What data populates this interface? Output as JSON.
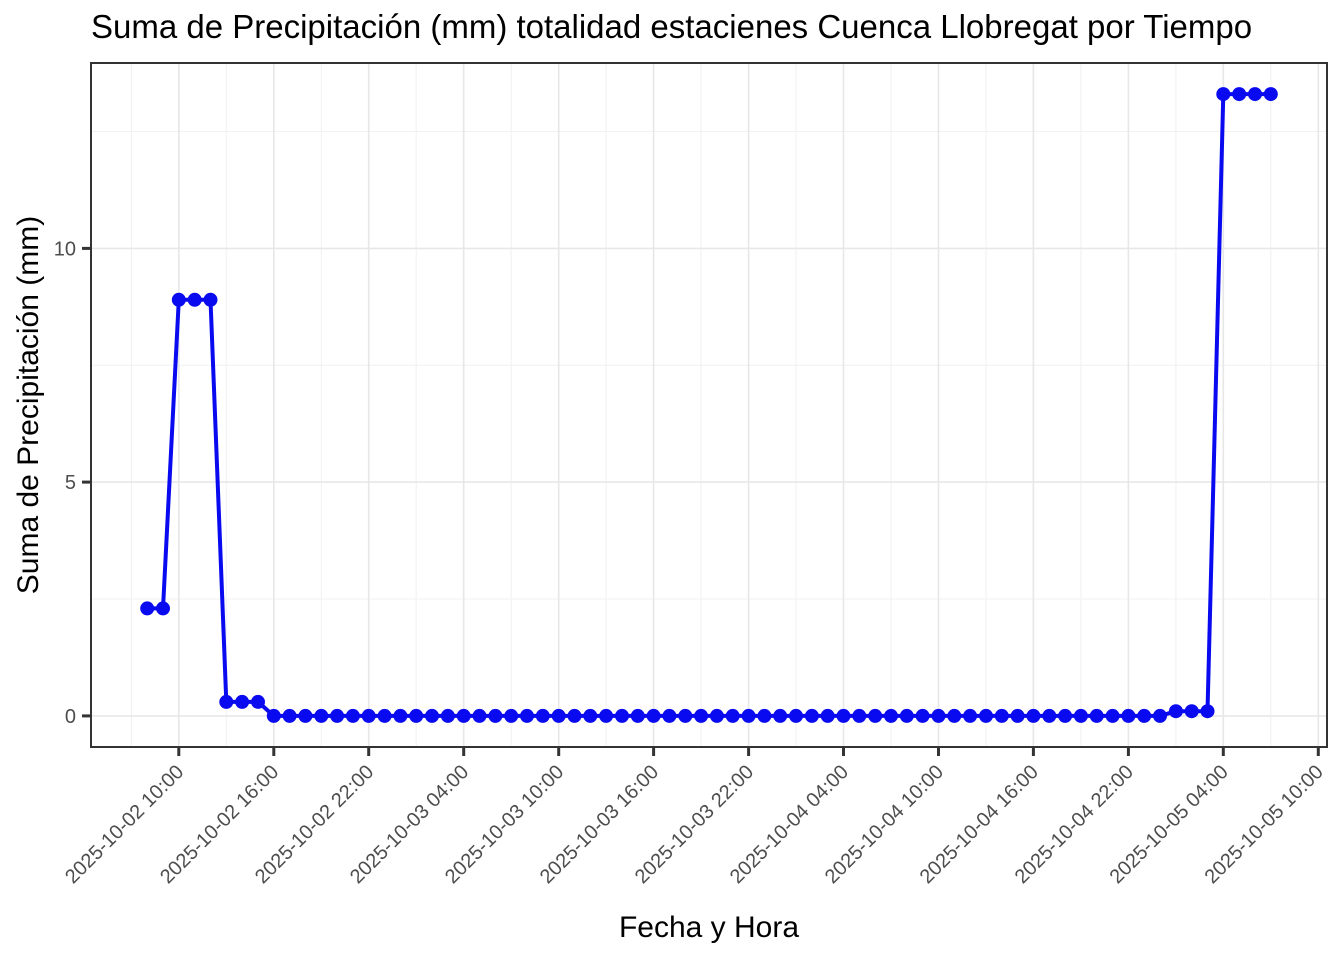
{
  "page": {
    "background": "#ffffff"
  },
  "chart_data": {
    "type": "line",
    "title": "Suma de Precipitación (mm) totalidad estacienes Cuenca Llobregat por Tiempo",
    "xlabel": "Fecha y Hora",
    "ylabel": "Suma de Precipitación (mm)",
    "legend": "none",
    "grid": "major+minor",
    "marker": "circle",
    "accent_color": "#0a0af0",
    "panel_border_color": "#333333",
    "tick_mark_color": "#333333",
    "tick_label_color": "#4d4d4d",
    "grid_major_color": "#e7e7e7",
    "grid_minor_color": "#f2f2f2",
    "y_ticks": [
      0,
      5,
      10
    ],
    "y_axis_expansion": 0.05,
    "x_axis_expansion": 0.05,
    "x_tick_labels": [
      "2025-10-02 10:00",
      "2025-10-02 16:00",
      "2025-10-02 22:00",
      "2025-10-03 04:00",
      "2025-10-03 10:00",
      "2025-10-03 16:00",
      "2025-10-03 22:00",
      "2025-10-04 04:00",
      "2025-10-04 10:00",
      "2025-10-04 16:00",
      "2025-10-04 22:00",
      "2025-10-05 04:00",
      "2025-10-05 10:00"
    ],
    "x": [
      "2025-10-02 08:00",
      "2025-10-02 09:00",
      "2025-10-02 10:00",
      "2025-10-02 11:00",
      "2025-10-02 12:00",
      "2025-10-02 13:00",
      "2025-10-02 14:00",
      "2025-10-02 15:00",
      "2025-10-02 16:00",
      "2025-10-02 17:00",
      "2025-10-02 18:00",
      "2025-10-02 19:00",
      "2025-10-02 20:00",
      "2025-10-02 21:00",
      "2025-10-02 22:00",
      "2025-10-02 23:00",
      "2025-10-03 00:00",
      "2025-10-03 01:00",
      "2025-10-03 02:00",
      "2025-10-03 03:00",
      "2025-10-03 04:00",
      "2025-10-03 05:00",
      "2025-10-03 06:00",
      "2025-10-03 07:00",
      "2025-10-03 08:00",
      "2025-10-03 09:00",
      "2025-10-03 10:00",
      "2025-10-03 11:00",
      "2025-10-03 12:00",
      "2025-10-03 13:00",
      "2025-10-03 14:00",
      "2025-10-03 15:00",
      "2025-10-03 16:00",
      "2025-10-03 17:00",
      "2025-10-03 18:00",
      "2025-10-03 19:00",
      "2025-10-03 20:00",
      "2025-10-03 21:00",
      "2025-10-03 22:00",
      "2025-10-03 23:00",
      "2025-10-04 00:00",
      "2025-10-04 01:00",
      "2025-10-04 02:00",
      "2025-10-04 03:00",
      "2025-10-04 04:00",
      "2025-10-04 05:00",
      "2025-10-04 06:00",
      "2025-10-04 07:00",
      "2025-10-04 08:00",
      "2025-10-04 09:00",
      "2025-10-04 10:00",
      "2025-10-04 11:00",
      "2025-10-04 12:00",
      "2025-10-04 13:00",
      "2025-10-04 14:00",
      "2025-10-04 15:00",
      "2025-10-04 16:00",
      "2025-10-04 17:00",
      "2025-10-04 18:00",
      "2025-10-04 19:00",
      "2025-10-04 20:00",
      "2025-10-04 21:00",
      "2025-10-04 22:00",
      "2025-10-04 23:00",
      "2025-10-05 00:00",
      "2025-10-05 01:00",
      "2025-10-05 02:00",
      "2025-10-05 03:00",
      "2025-10-05 04:00",
      "2025-10-05 05:00",
      "2025-10-05 06:00",
      "2025-10-05 07:00"
    ],
    "y": [
      2.3,
      2.3,
      8.9,
      8.9,
      8.9,
      0.3,
      0.3,
      0.3,
      0,
      0,
      0,
      0,
      0,
      0,
      0,
      0,
      0,
      0,
      0,
      0,
      0,
      0,
      0,
      0,
      0,
      0,
      0,
      0,
      0,
      0,
      0,
      0,
      0,
      0,
      0,
      0,
      0,
      0,
      0,
      0,
      0,
      0,
      0,
      0,
      0,
      0,
      0,
      0,
      0,
      0,
      0,
      0,
      0,
      0,
      0,
      0,
      0,
      0,
      0,
      0,
      0,
      0,
      0,
      0,
      0,
      0.1,
      0.1,
      0.1,
      13.3,
      13.3,
      13.3,
      13.3
    ]
  }
}
